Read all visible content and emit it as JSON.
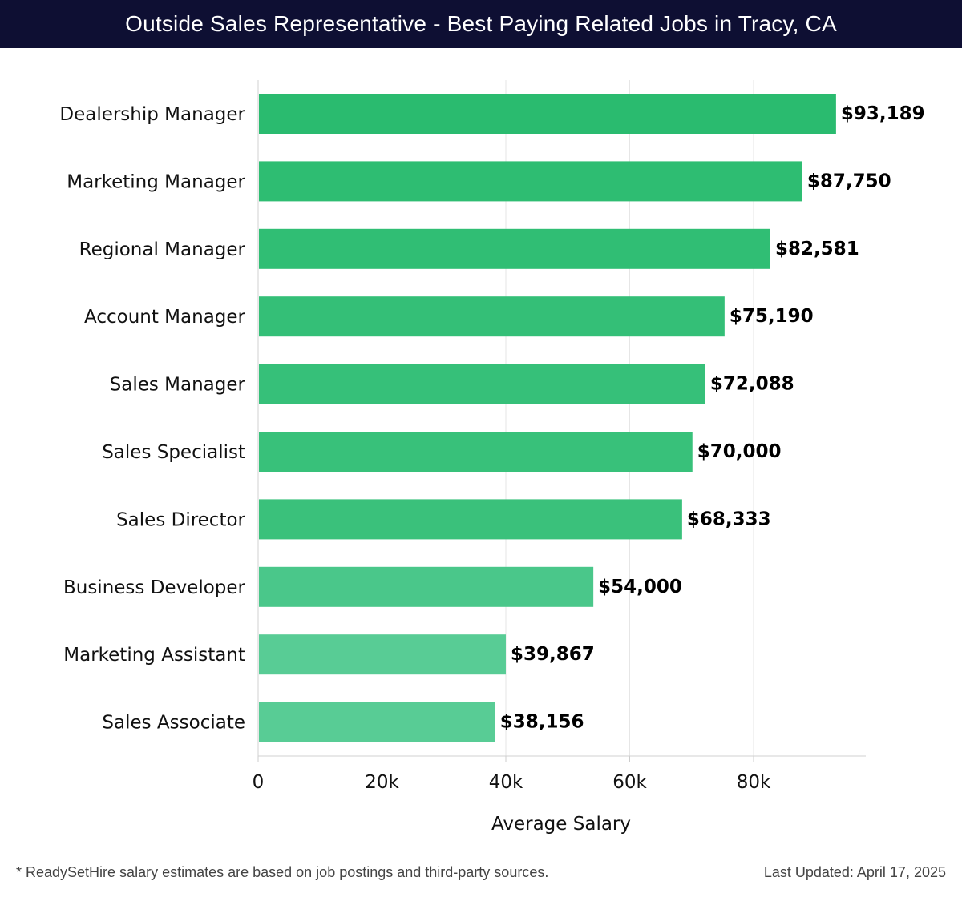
{
  "header": {
    "title": "Outside Sales Representative - Best Paying Related Jobs in Tracy, CA"
  },
  "footer": {
    "note": "* ReadySetHire salary estimates are based on job postings and third-party sources.",
    "updated": "Last Updated: April 17, 2025"
  },
  "chart_data": {
    "type": "bar",
    "orientation": "horizontal",
    "title": "Outside Sales Representative - Best Paying Related Jobs in Tracy, CA",
    "xlabel": "Average Salary",
    "ylabel": "",
    "xlim": [
      0,
      98000
    ],
    "ticks": [
      0,
      20000,
      40000,
      60000,
      80000
    ],
    "tick_labels": [
      "0",
      "20k",
      "40k",
      "60k",
      "80k"
    ],
    "grid": true,
    "categories": [
      "Dealership Manager",
      "Marketing Manager",
      "Regional Manager",
      "Account Manager",
      "Sales Manager",
      "Sales Specialist",
      "Sales Director",
      "Business Developer",
      "Marketing Assistant",
      "Sales Associate"
    ],
    "values": [
      93189,
      87750,
      82581,
      75190,
      72088,
      70000,
      68333,
      54000,
      39867,
      38156
    ],
    "value_labels": [
      "$93,189",
      "$87,750",
      "$82,581",
      "$75,190",
      "$72,088",
      "$70,000",
      "$68,333",
      "$54,000",
      "$39,867",
      "$38,156"
    ],
    "colors": [
      "#2abb6f",
      "#2ebd72",
      "#30be74",
      "#34bf77",
      "#36c079",
      "#38c17a",
      "#3ac17b",
      "#4ac78a",
      "#58cc95",
      "#58cc95"
    ]
  }
}
